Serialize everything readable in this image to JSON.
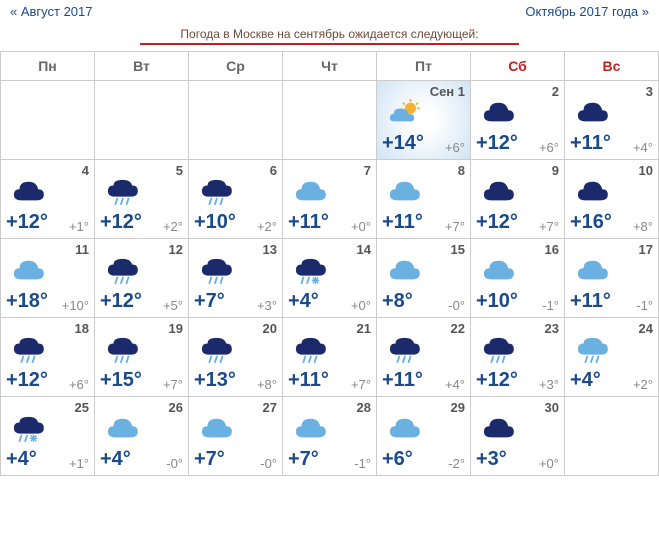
{
  "nav": {
    "prev": "« Август 2017",
    "next": "Октябрь 2017 года »"
  },
  "title": "Погода в Москве на сентябрь ожидается следующей:",
  "headers": [
    "Пн",
    "Вт",
    "Ср",
    "Чт",
    "Пт",
    "Сб",
    "Вс"
  ],
  "weekend_idx": [
    5,
    6
  ],
  "colors": {
    "nav": "#1a4a8a",
    "selected_bg": "#d0e4f5",
    "weekend": "#c02020",
    "dark_cloud": "#1a2a6a",
    "light_cloud": "#6ab0e0",
    "sun": "#f5b030"
  },
  "icons": {
    "partly": "partly",
    "dark": "dark",
    "dark_rain": "dark_rain",
    "light": "light",
    "light_rain": "light_rain",
    "dark_snowrain": "dark_snowrain"
  },
  "days": [
    {
      "date": "Сен 1",
      "icon": "partly",
      "high": "+14°",
      "low": "+6°",
      "selected": true
    },
    {
      "date": "2",
      "icon": "dark",
      "high": "+12°",
      "low": "+6°"
    },
    {
      "date": "3",
      "icon": "dark",
      "high": "+11°",
      "low": "+4°"
    },
    {
      "date": "4",
      "icon": "dark",
      "high": "+12°",
      "low": "+1°"
    },
    {
      "date": "5",
      "icon": "dark_rain",
      "high": "+12°",
      "low": "+2°"
    },
    {
      "date": "6",
      "icon": "dark_rain",
      "high": "+10°",
      "low": "+2°"
    },
    {
      "date": "7",
      "icon": "light",
      "high": "+11°",
      "low": "+0°"
    },
    {
      "date": "8",
      "icon": "light",
      "high": "+11°",
      "low": "+7°"
    },
    {
      "date": "9",
      "icon": "dark",
      "high": "+12°",
      "low": "+7°"
    },
    {
      "date": "10",
      "icon": "dark",
      "high": "+16°",
      "low": "+8°"
    },
    {
      "date": "11",
      "icon": "light",
      "high": "+18°",
      "low": "+10°"
    },
    {
      "date": "12",
      "icon": "dark_rain",
      "high": "+12°",
      "low": "+5°"
    },
    {
      "date": "13",
      "icon": "dark_rain",
      "high": "+7°",
      "low": "+3°"
    },
    {
      "date": "14",
      "icon": "dark_snowrain",
      "high": "+4°",
      "low": "+0°"
    },
    {
      "date": "15",
      "icon": "light",
      "high": "+8°",
      "low": "-0°"
    },
    {
      "date": "16",
      "icon": "light",
      "high": "+10°",
      "low": "-1°"
    },
    {
      "date": "17",
      "icon": "light",
      "high": "+11°",
      "low": "-1°"
    },
    {
      "date": "18",
      "icon": "dark_rain",
      "high": "+12°",
      "low": "+6°"
    },
    {
      "date": "19",
      "icon": "dark_rain",
      "high": "+15°",
      "low": "+7°"
    },
    {
      "date": "20",
      "icon": "dark_rain",
      "high": "+13°",
      "low": "+8°"
    },
    {
      "date": "21",
      "icon": "dark_rain",
      "high": "+11°",
      "low": "+7°"
    },
    {
      "date": "22",
      "icon": "dark_rain",
      "high": "+11°",
      "low": "+4°"
    },
    {
      "date": "23",
      "icon": "dark_rain",
      "high": "+12°",
      "low": "+3°"
    },
    {
      "date": "24",
      "icon": "light_rain",
      "high": "+4°",
      "low": "+2°"
    },
    {
      "date": "25",
      "icon": "dark_snowrain",
      "high": "+4°",
      "low": "+1°"
    },
    {
      "date": "26",
      "icon": "light",
      "high": "+4°",
      "low": "-0°"
    },
    {
      "date": "27",
      "icon": "light",
      "high": "+7°",
      "low": "-0°"
    },
    {
      "date": "28",
      "icon": "light",
      "high": "+7°",
      "low": "-1°"
    },
    {
      "date": "29",
      "icon": "light",
      "high": "+6°",
      "low": "-2°"
    },
    {
      "date": "30",
      "icon": "dark",
      "high": "+3°",
      "low": "+0°"
    }
  ],
  "leading_empty": 4
}
